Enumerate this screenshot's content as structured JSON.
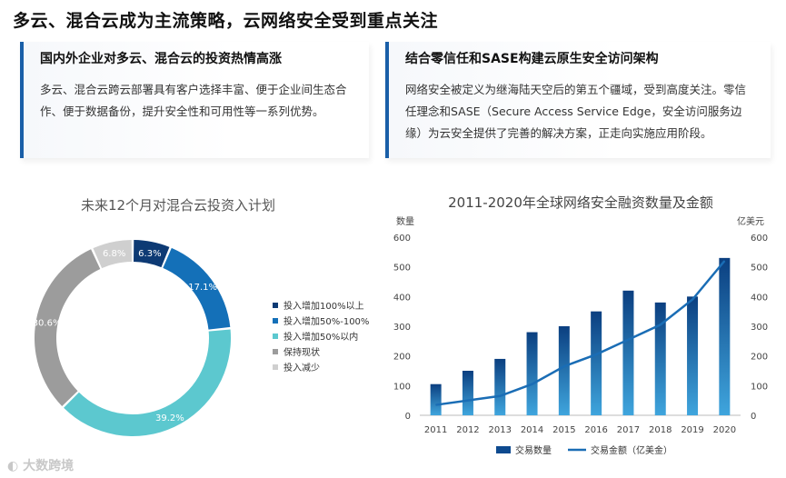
{
  "page_title": "多云、混合云成为主流策略，云网络安全受到重点关注",
  "left_panel": {
    "heading": "国内外企业对多云、混合云的投资热情高涨",
    "body": "多云、混合云跨云部署具有客户选择丰富、便于企业间生态合作、便于数据备份，提升安全性和可用性等一系列优势。"
  },
  "right_panel": {
    "heading": "结合零信任和SASE构建云原生安全访问架构",
    "body": "网络安全被定义为继海陆天空后的第五个疆域，受到高度关注。零信任理念和SASE（Secure Access Service Edge，安全访问服务边缘）为云安全提供了完善的解决方案，正走向实施应用阶段。"
  },
  "brand": "大数跨境",
  "chart_data": [
    {
      "type": "pie",
      "title": "未来12个月对混合云投资入计划",
      "series": [
        {
          "name": "投入增加100%以上",
          "value": 6.3,
          "label": "6.3%",
          "color": "#0d3a74"
        },
        {
          "name": "投入增加50%-100%",
          "value": 17.1,
          "label": "17.1%",
          "color": "#1470b8"
        },
        {
          "name": "投入增加50%以内",
          "value": 39.2,
          "label": "39.2%",
          "color": "#5cc8cf"
        },
        {
          "name": "保持现状",
          "value": 30.6,
          "label": "30.6%",
          "color": "#9c9c9c"
        },
        {
          "name": "投入减少",
          "value": 6.8,
          "label": "6.8%",
          "color": "#cfcfcf"
        }
      ],
      "legend_position": "right"
    },
    {
      "type": "bar",
      "title": "2011-2020年全球网络安全融资数量及金额",
      "categories": [
        "2011",
        "2012",
        "2013",
        "2014",
        "2015",
        "2016",
        "2017",
        "2018",
        "2019",
        "2020"
      ],
      "series": [
        {
          "name": "交易数量",
          "type": "bar",
          "axis": "left",
          "values": [
            105,
            150,
            190,
            280,
            300,
            350,
            420,
            380,
            400,
            530
          ],
          "color": "#0e4a8f"
        },
        {
          "name": "交易金额（亿美金）",
          "type": "line",
          "axis": "right",
          "values": [
            35,
            50,
            65,
            105,
            165,
            205,
            255,
            305,
            390,
            520
          ],
          "color": "#1a6db5"
        }
      ],
      "ylabel_left": "数量",
      "ylabel_right": "亿美元",
      "ylim_left": [
        0,
        600
      ],
      "ylim_right": [
        0,
        600
      ],
      "yticks": [
        "0",
        "100",
        "200",
        "300",
        "400",
        "500",
        "600"
      ],
      "legend_position": "bottom"
    }
  ]
}
